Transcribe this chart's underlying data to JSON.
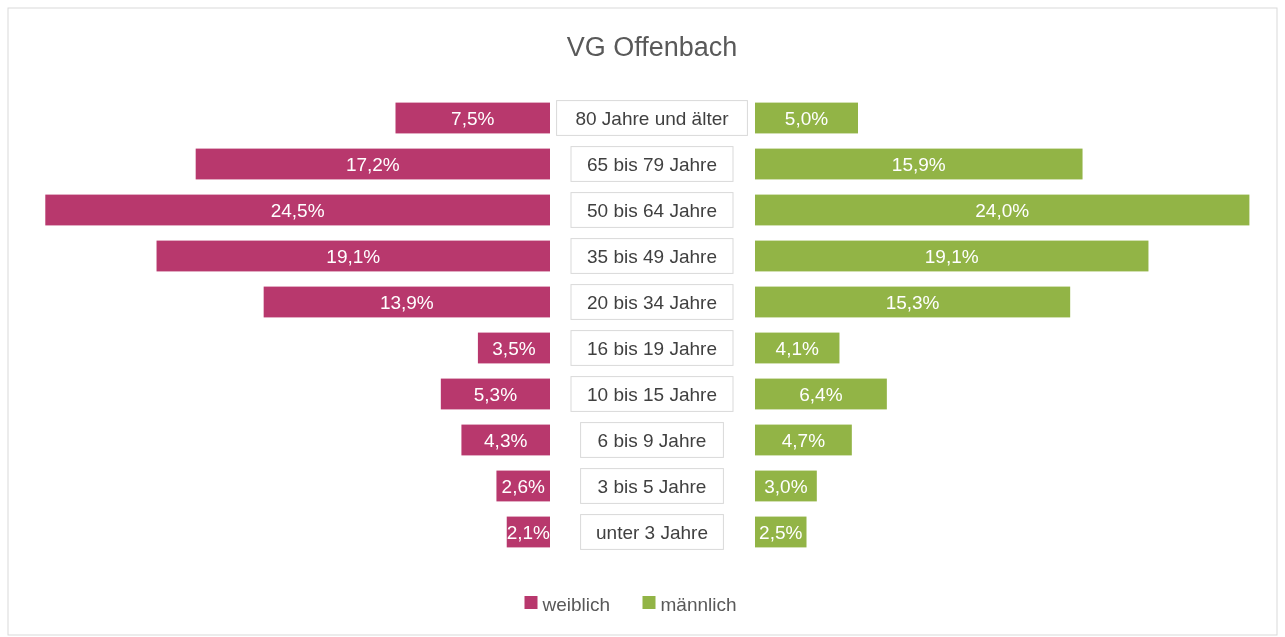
{
  "chart_data": [
    {
      "type": "bar",
      "orientation": "horizontal",
      "title": "VG Offenbach",
      "categories": [
        "80 Jahre und älter",
        "65 bis 79 Jahre",
        "50 bis 64 Jahre",
        "35 bis 49 Jahre",
        "20 bis 34 Jahre",
        "16 bis 19 Jahre",
        "10 bis 15 Jahre",
        "6 bis 9 Jahre",
        "3 bis 5 Jahre",
        "unter 3 Jahre"
      ],
      "series": [
        {
          "name": "weiblich",
          "color": "#b8386d",
          "values": [
            7.5,
            17.2,
            24.5,
            19.1,
            13.9,
            3.5,
            5.3,
            4.3,
            2.6,
            2.1
          ],
          "value_labels": [
            "7,5%",
            "17,2%",
            "24,5%",
            "19,1%",
            "13,9%",
            "3,5%",
            "5,3%",
            "4,3%",
            "2,6%",
            "2,1%"
          ]
        }
      ],
      "legend": "bottom"
    },
    {
      "type": "bar",
      "orientation": "horizontal",
      "categories": [
        null,
        null,
        null,
        null,
        null,
        null,
        null,
        null,
        null,
        null
      ],
      "series": [
        {
          "name": "männlich",
          "color": "#92b446",
          "values": [
            5.0,
            15.9,
            24.0,
            19.1,
            15.3,
            4.1,
            6.4,
            4.7,
            3.0,
            2.5
          ],
          "value_labels": [
            "5,0%",
            "15,9%",
            "24,0%",
            "19,1%",
            "15,3%",
            "4,1%",
            "6,4%",
            "4,7%",
            "3,0%",
            "2,5%"
          ]
        }
      ],
      "legend": "bottom"
    }
  ]
}
